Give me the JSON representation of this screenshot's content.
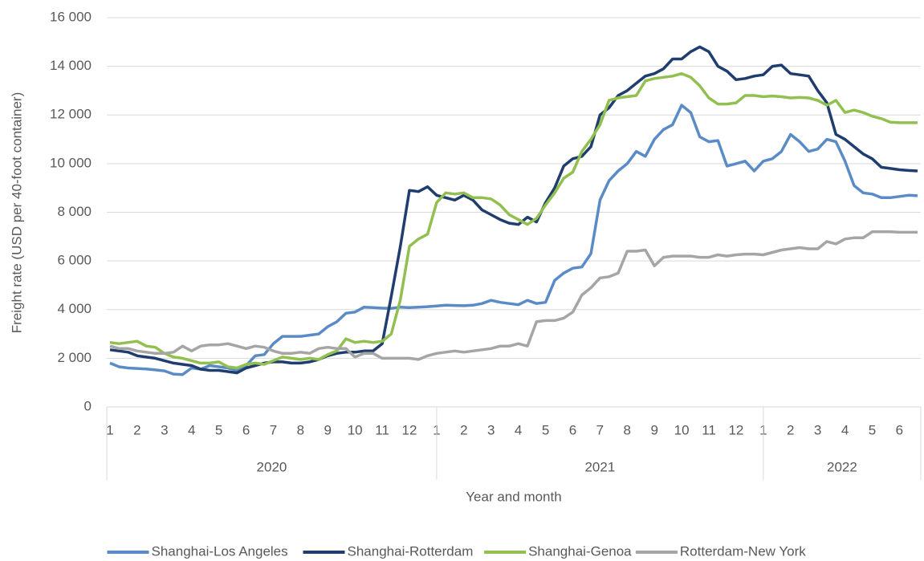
{
  "chart_data": {
    "type": "line",
    "y_label": "Freight rate (USD per 40-foot container)",
    "x_label": "Year and month",
    "categories": [
      "1",
      null,
      null,
      "2",
      null,
      null,
      "3",
      null,
      null,
      "4",
      null,
      null,
      "5",
      null,
      null,
      "6",
      null,
      null,
      "7",
      null,
      null,
      "8",
      null,
      null,
      "9",
      null,
      null,
      "10",
      null,
      null,
      "11",
      null,
      null,
      "12",
      null,
      null,
      "1",
      null,
      null,
      "2",
      null,
      null,
      "3",
      null,
      null,
      "4",
      null,
      null,
      "5",
      null,
      null,
      "6",
      null,
      null,
      "7",
      null,
      null,
      "8",
      null,
      null,
      "9",
      null,
      null,
      "10",
      null,
      null,
      "11",
      null,
      null,
      "12",
      null,
      null,
      "1",
      null,
      null,
      "2",
      null,
      null,
      "3",
      null,
      null,
      "4",
      null,
      null,
      "5",
      null,
      null,
      "6",
      null,
      null
    ],
    "year_groups": [
      {
        "label": "2020",
        "months": 12
      },
      {
        "label": "2021",
        "months": 12
      },
      {
        "label": "2022",
        "months": 6
      }
    ],
    "ylim": [
      0,
      16000
    ],
    "yticks": [
      0,
      {
        "value": 2000,
        "label": "2 000"
      },
      {
        "value": 4000,
        "label": "4 000"
      },
      {
        "value": 6000,
        "label": "6 000"
      },
      {
        "value": 8000,
        "label": "8 000"
      },
      {
        "value": 10000,
        "label": "10 000"
      },
      {
        "value": 12000,
        "label": "12 000"
      },
      {
        "value": 14000,
        "label": "14 000"
      },
      {
        "value": 16000,
        "label": "16 000"
      }
    ],
    "grid": true,
    "legend": "bottom",
    "series": [
      {
        "name": "Shanghai-Los Angeles",
        "color": "#5b8bc7",
        "values": [
          1800,
          1650,
          1600,
          1580,
          1560,
          1520,
          1480,
          1350,
          1330,
          1600,
          1550,
          1700,
          1650,
          1600,
          1500,
          1700,
          2100,
          2150,
          2600,
          2900,
          2900,
          2900,
          2950,
          3000,
          3300,
          3500,
          3850,
          3900,
          4100,
          4080,
          4060,
          4050,
          4100,
          4080,
          4100,
          4120,
          4150,
          4180,
          4170,
          4160,
          4180,
          4250,
          4380,
          4300,
          4250,
          4200,
          4380,
          4250,
          4300,
          5200,
          5500,
          5700,
          5750,
          6300,
          8500,
          9300,
          9700,
          10000,
          10500,
          10300,
          11000,
          11400,
          11600,
          12400,
          12100,
          11100,
          10900,
          10950,
          9900,
          10000,
          10100,
          9700,
          10100,
          10200,
          10500,
          11200,
          10900,
          10500,
          10600,
          11000,
          10900,
          10100,
          9100,
          8800,
          8750,
          8600,
          8600,
          8650,
          8700,
          8680
        ]
      },
      {
        "name": "Shanghai-Rotterdam",
        "color": "#1f3d6e",
        "values": [
          2350,
          2300,
          2250,
          2100,
          2050,
          2000,
          1900,
          1800,
          1750,
          1700,
          1550,
          1500,
          1500,
          1450,
          1400,
          1600,
          1700,
          1800,
          1850,
          1850,
          1800,
          1800,
          1850,
          1950,
          2100,
          2200,
          2250,
          2250,
          2300,
          2300,
          2600,
          4550,
          6600,
          8900,
          8850,
          9050,
          8700,
          8600,
          8500,
          8700,
          8500,
          8100,
          7900,
          7700,
          7550,
          7500,
          7800,
          7600,
          8400,
          9000,
          9900,
          10200,
          10300,
          10700,
          12000,
          12300,
          12800,
          13000,
          13300,
          13600,
          13700,
          13900,
          14300,
          14300,
          14600,
          14800,
          14600,
          14000,
          13800,
          13450,
          13500,
          13600,
          13650,
          14000,
          14050,
          13700,
          13650,
          13600,
          13000,
          12500,
          11200,
          11000,
          10700,
          10400,
          10200,
          9850,
          9800,
          9750,
          9720,
          9700
        ]
      },
      {
        "name": "Shanghai-Genoa",
        "color": "#92c050",
        "values": [
          2650,
          2600,
          2650,
          2700,
          2500,
          2450,
          2200,
          2050,
          2000,
          1900,
          1800,
          1800,
          1850,
          1650,
          1600,
          1750,
          1800,
          1750,
          1900,
          2050,
          2000,
          1950,
          2000,
          1950,
          2150,
          2300,
          2800,
          2650,
          2700,
          2650,
          2700,
          3000,
          4400,
          6600,
          6900,
          7100,
          8400,
          8800,
          8750,
          8800,
          8600,
          8600,
          8550,
          8300,
          7900,
          7700,
          7500,
          7750,
          8300,
          8800,
          9400,
          9650,
          10500,
          11000,
          11600,
          12600,
          12700,
          12750,
          12800,
          13400,
          13500,
          13550,
          13600,
          13700,
          13550,
          13200,
          12700,
          12450,
          12450,
          12500,
          12800,
          12800,
          12750,
          12780,
          12750,
          12700,
          12720,
          12700,
          12600,
          12400,
          12600,
          12100,
          12200,
          12100,
          11950,
          11850,
          11700,
          11680,
          11680,
          11680
        ]
      },
      {
        "name": "Rotterdam-New York",
        "color": "#a5a5a5",
        "values": [
          2500,
          2400,
          2400,
          2300,
          2250,
          2200,
          2200,
          2250,
          2500,
          2300,
          2500,
          2550,
          2550,
          2600,
          2500,
          2400,
          2500,
          2450,
          2300,
          2200,
          2200,
          2250,
          2200,
          2400,
          2450,
          2400,
          2400,
          2050,
          2200,
          2200,
          2000,
          2000,
          2000,
          2000,
          1950,
          2100,
          2200,
          2250,
          2300,
          2250,
          2300,
          2350,
          2400,
          2500,
          2500,
          2600,
          2500,
          3500,
          3550,
          3550,
          3650,
          3900,
          4600,
          4900,
          5300,
          5350,
          5500,
          6400,
          6400,
          6450,
          5800,
          6150,
          6200,
          6200,
          6200,
          6150,
          6150,
          6250,
          6200,
          6250,
          6280,
          6280,
          6250,
          6350,
          6450,
          6500,
          6550,
          6500,
          6500,
          6800,
          6700,
          6900,
          6950,
          6950,
          7200,
          7200,
          7200,
          7180,
          7180,
          7180
        ]
      }
    ]
  }
}
